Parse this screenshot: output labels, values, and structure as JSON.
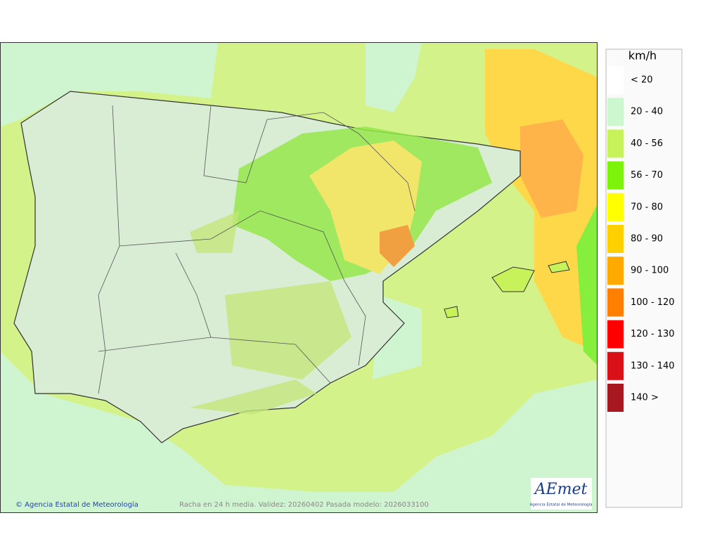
{
  "map": {
    "footer_credit": "© Agencia Estatal de Meteorología",
    "footer_info": "Racha en 24 h media. Validez: 20260402 Pasada modelo: 2026033100",
    "logo": {
      "name": "AEmet",
      "caption": "Agencia Estatal de Meteorología"
    }
  },
  "legend": {
    "title": "km/h",
    "items": [
      {
        "label": "< 20",
        "color": "#ffffff"
      },
      {
        "label": "20 - 40",
        "color": "#ccf7cf"
      },
      {
        "label": "40 - 56",
        "color": "#c8f25a"
      },
      {
        "label": "56 - 70",
        "color": "#7df20a"
      },
      {
        "label": "70 - 80",
        "color": "#ffff00"
      },
      {
        "label": "80 - 90",
        "color": "#ffd000"
      },
      {
        "label": "90 - 100",
        "color": "#ffaa00"
      },
      {
        "label": "100 - 120",
        "color": "#ff8000"
      },
      {
        "label": "120 - 130",
        "color": "#ff0000"
      },
      {
        "label": "130 - 140",
        "color": "#d81018"
      },
      {
        "label": "140 >",
        "color": "#a81820"
      }
    ]
  }
}
